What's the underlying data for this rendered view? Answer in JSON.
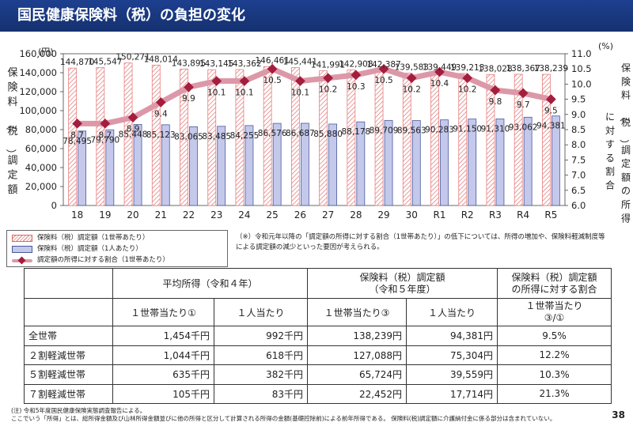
{
  "slide_title": "国民健康保険料（税）の負担の変化",
  "chart_data": {
    "type": "bar+line",
    "categories": [
      "18",
      "19",
      "20",
      "21",
      "22",
      "23",
      "24",
      "25",
      "26",
      "27",
      "28",
      "29",
      "30",
      "R1",
      "R2",
      "R3",
      "R4",
      "R5"
    ],
    "series": [
      {
        "name": "保険料（税）調定額（1世帯あたり）",
        "axis": "left",
        "values": [
          144870,
          145547,
          150271,
          148014,
          143895,
          143145,
          143362,
          146461,
          145441,
          141991,
          142908,
          142387,
          139583,
          139449,
          139213,
          138028,
          138367,
          138239
        ],
        "labels": [
          "144,870",
          "145,547",
          "150,271",
          "148,014",
          "143,895",
          "143,145",
          "143,362",
          "146,461",
          "145,441",
          "141,991",
          "142,908",
          "142,387",
          "139,583",
          "139,449",
          "139,213",
          "138,028",
          "138,367",
          "138,239"
        ]
      },
      {
        "name": "保険料（税）調定額（1人あたり）",
        "axis": "left",
        "values": [
          78495,
          79790,
          85448,
          85123,
          83065,
          83485,
          84255,
          86576,
          86687,
          85880,
          88178,
          89709,
          89563,
          90283,
          91150,
          91310,
          93062,
          94381
        ],
        "labels": [
          "78,495",
          "79,790",
          "85,448",
          "85,123",
          "83,065",
          "83,485",
          "84,255",
          "86,576",
          "86,687",
          "85,880",
          "88,178",
          "89,709",
          "89,563",
          "90,283",
          "91,150",
          "91,310",
          "93,062",
          "94,381"
        ]
      },
      {
        "name": "調定額の所得に対する割合（1世帯あたり）",
        "axis": "right",
        "values": [
          8.7,
          8.7,
          8.9,
          9.4,
          9.9,
          10.1,
          10.1,
          10.5,
          10.1,
          10.2,
          10.3,
          10.5,
          10.2,
          10.4,
          10.2,
          9.8,
          9.7,
          9.5
        ],
        "labels": [
          "8.7",
          "8.7",
          "8.9",
          "9.4",
          "9.9",
          "10.1",
          "10.1",
          "10.5",
          "10.1",
          "10.2",
          "10.3",
          "10.5",
          "10.2",
          "10.4",
          "10.2",
          "9.8",
          "9.7",
          "9.5"
        ]
      }
    ],
    "y_left": {
      "range": [
        0,
        160000
      ],
      "ticks": [
        "0",
        "20,000",
        "40,000",
        "60,000",
        "80,000",
        "100,000",
        "120,000",
        "140,000",
        "160,000"
      ],
      "unit": "(円)",
      "label": "保険料（税）調定額"
    },
    "y_right": {
      "range": [
        6.0,
        11.0
      ],
      "ticks": [
        "6.0",
        "6.5",
        "7.0",
        "7.5",
        "8.0",
        "8.5",
        "9.0",
        "9.5",
        "10.0",
        "10.5",
        "11.0"
      ],
      "unit": "(%)",
      "label": "保険料（税）調定額の所得に対する割合"
    },
    "colors": {
      "hatch": "#e58080",
      "bar_blue_fill": "#c4c8eb",
      "bar_blue_stroke": "#4a5a9a",
      "line": "#dc98a8",
      "marker": "#a51d3d"
    }
  },
  "legend": {
    "items": [
      "保険料（税）調定額（1世帯あたり）",
      "保険料（税）調定額（1人あたり）",
      "調定額の所得に対する割合（1世帯あたり）"
    ]
  },
  "note": "（※）令和元年以降の「調定額の所得に対する割合（1世帯あたり）」の低下については、所得の増加や、保険料軽減制度等による調定額の減少といった要因が考えられる。",
  "table": {
    "group_headers": [
      "平均所得（令和４年）",
      "保険料（税）調定額\n（令和５年度）",
      "保険料（税）調定額\nの所得に対する割合"
    ],
    "sub_headers": [
      "１世帯当たり①",
      "１人当たり",
      "１世帯当たり③",
      "１人当たり",
      "１世帯当たり\n③/①"
    ],
    "rows": [
      {
        "label": "全世帯",
        "cells": [
          "1,454千円",
          "992千円",
          "138,239円",
          "94,381円",
          "9.5%"
        ]
      },
      {
        "label": "２割軽減世帯",
        "cells": [
          "1,044千円",
          "618千円",
          "127,088円",
          "75,304円",
          "12.2%"
        ]
      },
      {
        "label": "５割軽減世帯",
        "cells": [
          "635千円",
          "382千円",
          "65,724円",
          "39,559円",
          "10.3%"
        ]
      },
      {
        "label": "７割軽減世帯",
        "cells": [
          "105千円",
          "83千円",
          "22,452円",
          "17,714円",
          "21.3%"
        ]
      }
    ]
  },
  "footnotes": [
    "(注) 令和5年度国民健康保険実態調査報告による。",
    "ここでいう「所得」とは、総所得金額及び山林所得金額並びに他の所得と区分して計算される所得の金額(基礎控除前)による前年所得である。 保険料(税)調定額に介護納付金に係る部分は含まれていない。"
  ],
  "page_number": "38"
}
